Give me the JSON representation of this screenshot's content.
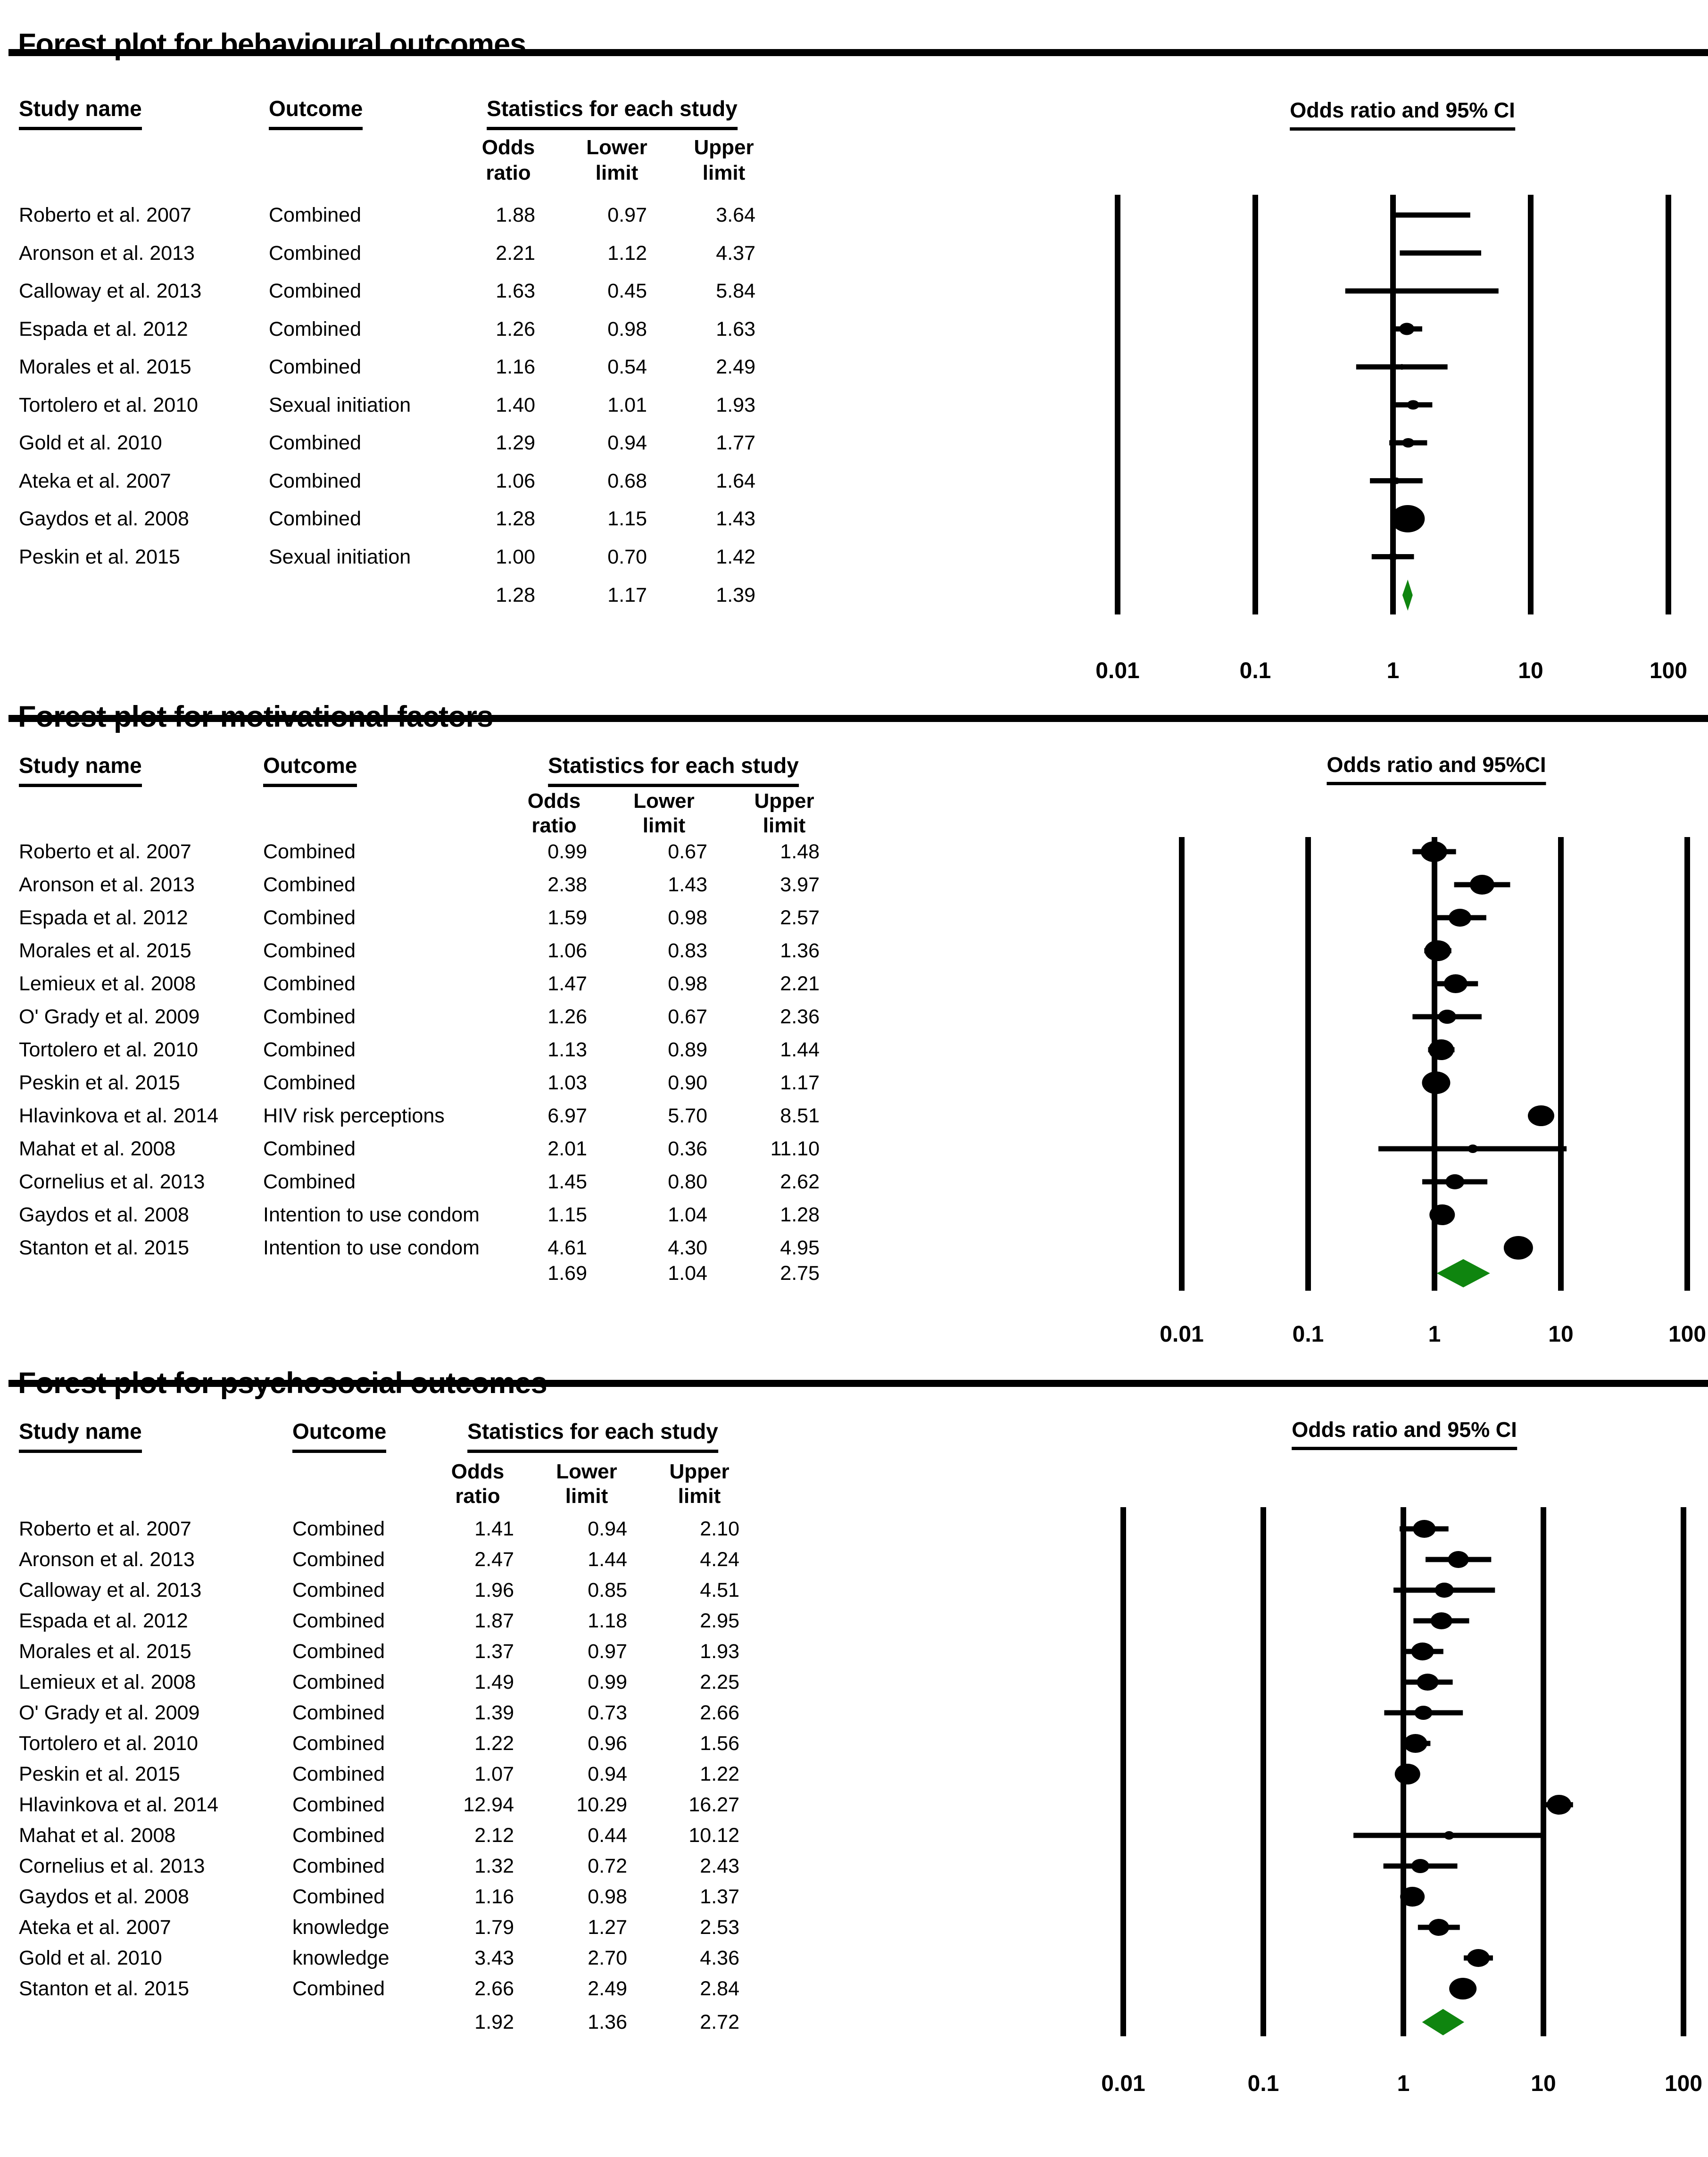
{
  "panels": [
    {
      "id": "behavioural",
      "section_title": "Forest plot for behavioural outcomes",
      "table_headers": {
        "study": "Study name",
        "outcome": "Outcome",
        "stats": "Statistics for each study"
      },
      "stat_columns": [
        {
          "line1": "Odds",
          "line2": "ratio"
        },
        {
          "line1": "Lower",
          "line2": "limit"
        },
        {
          "line1": "Upper",
          "line2": "limit"
        }
      ],
      "plot_title": "Odds ratio and 95% CI",
      "chart_data": {
        "type": "forest",
        "x_scale": "log10",
        "axis_ticks": [
          "0.01",
          "0.1",
          "1",
          "10",
          "100"
        ],
        "diamond_color": "#0f850f",
        "rows": [
          {
            "study": "Roberto et al. 2007",
            "outcome": "Combined",
            "odds_ratio": "1.88",
            "lower": "0.97",
            "upper": "3.64",
            "marker_size": 5
          },
          {
            "study": "Aronson et al. 2013",
            "outcome": "Combined",
            "odds_ratio": "2.21",
            "lower": "1.12",
            "upper": "4.37",
            "marker_size": 5
          },
          {
            "study": "Calloway et al. 2013",
            "outcome": "Combined",
            "odds_ratio": "1.63",
            "lower": "0.45",
            "upper": "5.84",
            "marker_size": 4
          },
          {
            "study": "Espada et al. 2012",
            "outcome": "Combined",
            "odds_ratio": "1.26",
            "lower": "0.98",
            "upper": "1.63",
            "marker_size": 16
          },
          {
            "study": "Morales et al. 2015",
            "outcome": "Combined",
            "odds_ratio": "1.16",
            "lower": "0.54",
            "upper": "2.49",
            "marker_size": 6
          },
          {
            "study": "Tortolero et al. 2010",
            "outcome": "Sexual initiation",
            "odds_ratio": "1.40",
            "lower": "1.01",
            "upper": "1.93",
            "marker_size": 13
          },
          {
            "study": "Gold et al. 2010",
            "outcome": "Combined",
            "odds_ratio": "1.29",
            "lower": "0.94",
            "upper": "1.77",
            "marker_size": 13
          },
          {
            "study": "Ateka et al. 2007",
            "outcome": "Combined",
            "odds_ratio": "1.06",
            "lower": "0.68",
            "upper": "1.64",
            "marker_size": 7
          },
          {
            "study": "Gaydos et al. 2008",
            "outcome": "Combined",
            "odds_ratio": "1.28",
            "lower": "1.15",
            "upper": "1.43",
            "marker_size": 36
          },
          {
            "study": "Peskin et al. 2015",
            "outcome": "Sexual initiation",
            "odds_ratio": "1.00",
            "lower": "0.70",
            "upper": "1.42",
            "marker_size": 9
          }
        ],
        "summary": {
          "odds_ratio": "1.28",
          "lower": "1.17",
          "upper": "1.39"
        }
      }
    },
    {
      "id": "motivational",
      "section_title": "Forest plot for motivational factors",
      "table_headers": {
        "study": "Study name",
        "outcome": "Outcome",
        "stats": "Statistics for each study"
      },
      "stat_columns": [
        {
          "line1": "Odds",
          "line2": "ratio"
        },
        {
          "line1": "Lower",
          "line2": "limit"
        },
        {
          "line1": "Upper",
          "line2": "limit"
        }
      ],
      "plot_title": "Odds ratio and 95%CI",
      "chart_data": {
        "type": "forest",
        "x_scale": "log10",
        "axis_ticks": [
          "0.01",
          "0.1",
          "1",
          "10",
          "100"
        ],
        "diamond_color": "#0f850f",
        "rows": [
          {
            "study": "Roberto et al. 2007",
            "outcome": "Combined",
            "odds_ratio": "0.99",
            "lower": "0.67",
            "upper": "1.48",
            "marker_size": 28
          },
          {
            "study": "Aronson et al. 2013",
            "outcome": "Combined",
            "odds_ratio": "2.38",
            "lower": "1.43",
            "upper": "3.97",
            "marker_size": 26
          },
          {
            "study": "Espada et al. 2012",
            "outcome": "Combined",
            "odds_ratio": "1.59",
            "lower": "0.98",
            "upper": "2.57",
            "marker_size": 24
          },
          {
            "study": "Morales et al. 2015",
            "outcome": "Combined",
            "odds_ratio": "1.06",
            "lower": "0.83",
            "upper": "1.36",
            "marker_size": 28
          },
          {
            "study": "Lemieux et al. 2008",
            "outcome": "Combined",
            "odds_ratio": "1.47",
            "lower": "0.98",
            "upper": "2.21",
            "marker_size": 25
          },
          {
            "study": "O' Grady et al. 2009",
            "outcome": "Combined",
            "odds_ratio": "1.26",
            "lower": "0.67",
            "upper": "2.36",
            "marker_size": 19
          },
          {
            "study": "Tortolero et al. 2010",
            "outcome": "Combined",
            "odds_ratio": "1.13",
            "lower": "0.89",
            "upper": "1.44",
            "marker_size": 27
          },
          {
            "study": "Peskin et al. 2015",
            "outcome": "Combined",
            "odds_ratio": "1.03",
            "lower": "0.90",
            "upper": "1.17",
            "marker_size": 30
          },
          {
            "study": "Hlavinkova et al. 2014",
            "outcome": "HIV risk perceptions",
            "odds_ratio": "6.97",
            "lower": "5.70",
            "upper": "8.51",
            "marker_size": 28
          },
          {
            "study": "Mahat et al. 2008",
            "outcome": "Combined",
            "odds_ratio": "2.01",
            "lower": "0.36",
            "upper": "11.10",
            "marker_size": 11
          },
          {
            "study": "Cornelius et al. 2013",
            "outcome": "Combined",
            "odds_ratio": "1.45",
            "lower": "0.80",
            "upper": "2.62",
            "marker_size": 20
          },
          {
            "study": "Gaydos et al. 2008",
            "outcome": "Intention to use condom",
            "odds_ratio": "1.15",
            "lower": "1.04",
            "upper": "1.28",
            "marker_size": 27
          },
          {
            "study": "Stanton et al. 2015",
            "outcome": "Intention to use condom",
            "odds_ratio": "4.61",
            "lower": "4.30",
            "upper": "4.95",
            "marker_size": 31
          }
        ],
        "summary": {
          "odds_ratio": "1.69",
          "lower": "1.04",
          "upper": "2.75"
        }
      }
    },
    {
      "id": "psychosocial",
      "section_title": "Forest plot for psychosocial outcomes",
      "table_headers": {
        "study": "Study name",
        "outcome": "Outcome",
        "stats": "Statistics for each study"
      },
      "stat_columns": [
        {
          "line1": "Odds",
          "line2": "ratio"
        },
        {
          "line1": "Lower",
          "line2": "limit"
        },
        {
          "line1": "Upper",
          "line2": "limit"
        }
      ],
      "plot_title": "Odds ratio and 95% CI",
      "chart_data": {
        "type": "forest",
        "x_scale": "log10",
        "axis_ticks": [
          "0.01",
          "0.1",
          "1",
          "10",
          "100"
        ],
        "diamond_color": "#0f850f",
        "rows": [
          {
            "study": "Roberto et al. 2007",
            "outcome": "Combined",
            "odds_ratio": "1.41",
            "lower": "0.94",
            "upper": "2.10",
            "marker_size": 24
          },
          {
            "study": "Aronson et al. 2013",
            "outcome": "Combined",
            "odds_ratio": "2.47",
            "lower": "1.44",
            "upper": "4.24",
            "marker_size": 22
          },
          {
            "study": "Calloway et al. 2013",
            "outcome": "Combined",
            "odds_ratio": "1.96",
            "lower": "0.85",
            "upper": "4.51",
            "marker_size": 20
          },
          {
            "study": "Espada et al. 2012",
            "outcome": "Combined",
            "odds_ratio": "1.87",
            "lower": "1.18",
            "upper": "2.95",
            "marker_size": 23
          },
          {
            "study": "Morales et al. 2015",
            "outcome": "Combined",
            "odds_ratio": "1.37",
            "lower": "0.97",
            "upper": "1.93",
            "marker_size": 24
          },
          {
            "study": "Lemieux et al. 2008",
            "outcome": "Combined",
            "odds_ratio": "1.49",
            "lower": "0.99",
            "upper": "2.25",
            "marker_size": 23
          },
          {
            "study": "O' Grady et al. 2009",
            "outcome": "Combined",
            "odds_ratio": "1.39",
            "lower": "0.73",
            "upper": "2.66",
            "marker_size": 19
          },
          {
            "study": "Tortolero et al. 2010",
            "outcome": "Combined",
            "odds_ratio": "1.22",
            "lower": "0.96",
            "upper": "1.56",
            "marker_size": 25
          },
          {
            "study": "Peskin et al. 2015",
            "outcome": "Combined",
            "odds_ratio": "1.07",
            "lower": "0.94",
            "upper": "1.22",
            "marker_size": 27
          },
          {
            "study": "Hlavinkova et al. 2014",
            "outcome": "Combined",
            "odds_ratio": "12.94",
            "lower": "10.29",
            "upper": "16.27",
            "marker_size": 26
          },
          {
            "study": "Mahat et al. 2008",
            "outcome": "Combined",
            "odds_ratio": "2.12",
            "lower": "0.44",
            "upper": "10.12",
            "marker_size": 11
          },
          {
            "study": "Cornelius et al. 2013",
            "outcome": "Combined",
            "odds_ratio": "1.32",
            "lower": "0.72",
            "upper": "2.43",
            "marker_size": 19
          },
          {
            "study": "Gaydos et al. 2008",
            "outcome": "Combined",
            "odds_ratio": "1.16",
            "lower": "0.98",
            "upper": "1.37",
            "marker_size": 26
          },
          {
            "study": "Ateka et al. 2007",
            "outcome": "knowledge",
            "odds_ratio": "1.79",
            "lower": "1.27",
            "upper": "2.53",
            "marker_size": 22
          },
          {
            "study": "Gold et al. 2010",
            "outcome": "knowledge",
            "odds_ratio": "3.43",
            "lower": "2.70",
            "upper": "4.36",
            "marker_size": 24
          },
          {
            "study": "Stanton et al. 2015",
            "outcome": "Combined",
            "odds_ratio": "2.66",
            "lower": "2.49",
            "upper": "2.84",
            "marker_size": 29
          }
        ],
        "summary": {
          "odds_ratio": "1.92",
          "lower": "1.36",
          "upper": "2.72"
        }
      }
    }
  ]
}
